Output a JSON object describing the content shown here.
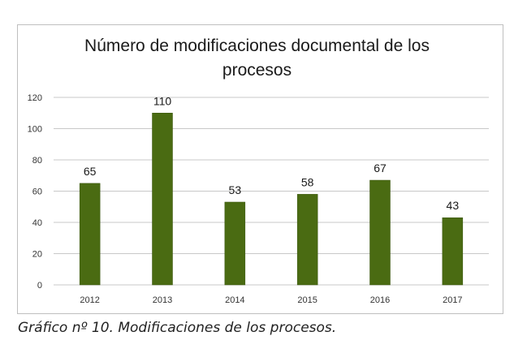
{
  "chart_data": {
    "type": "bar",
    "title_lines": [
      "Número de  modificaciones  documental de los",
      "procesos"
    ],
    "categories": [
      "2012",
      "2013",
      "2014",
      "2015",
      "2016",
      "2017"
    ],
    "values": [
      65,
      110,
      53,
      58,
      67,
      43
    ],
    "data_labels": [
      "65",
      "110",
      "53",
      "58",
      "67",
      "43"
    ],
    "y_ticks": [
      "0",
      "20",
      "40",
      "60",
      "80",
      "100",
      "120"
    ],
    "ylim": [
      0,
      120
    ],
    "xlabel": "",
    "ylabel": "",
    "grid": true,
    "legend": "none",
    "bar_color": "#4a6b12",
    "grid_color": "#c8c8c8"
  },
  "caption": "Gráfico nº 10. Modificaciones de los procesos."
}
